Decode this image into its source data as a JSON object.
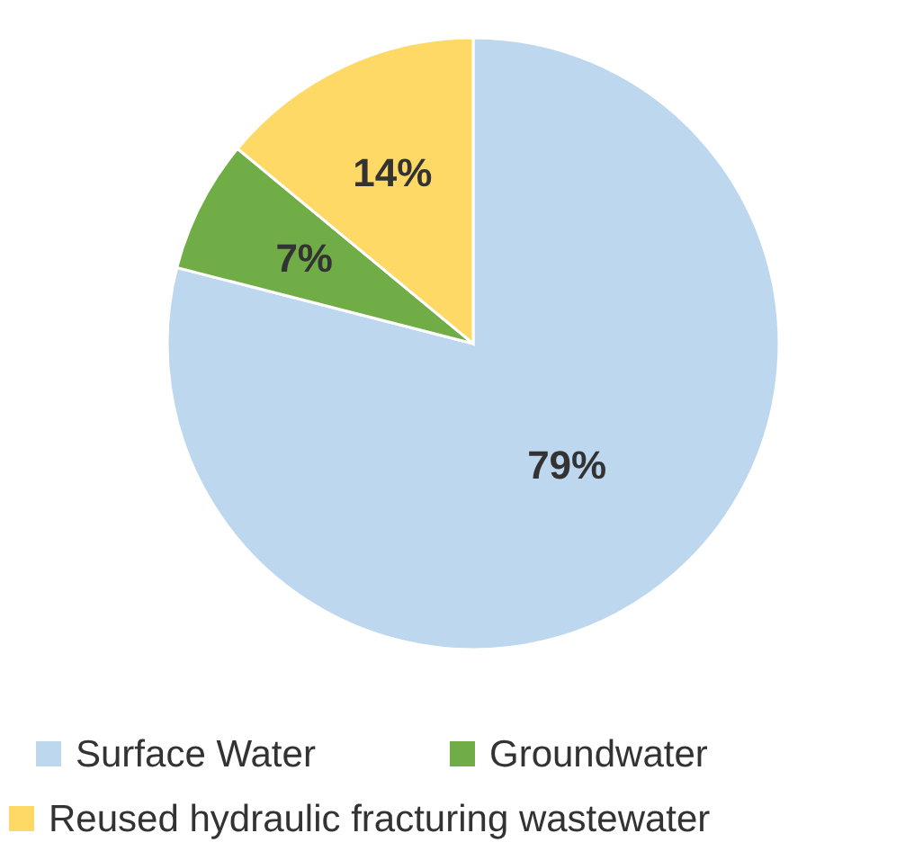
{
  "chart_data": {
    "type": "pie",
    "categories": [
      "Surface Water",
      "Groundwater",
      "Reused hydraulic fracturing wastewater"
    ],
    "values": [
      79,
      7,
      14
    ],
    "colors": [
      "#bdd7ee",
      "#70ad47",
      "#ffd966"
    ],
    "value_labels": [
      "79%",
      "7%",
      "14%"
    ],
    "legend": "bottom"
  }
}
